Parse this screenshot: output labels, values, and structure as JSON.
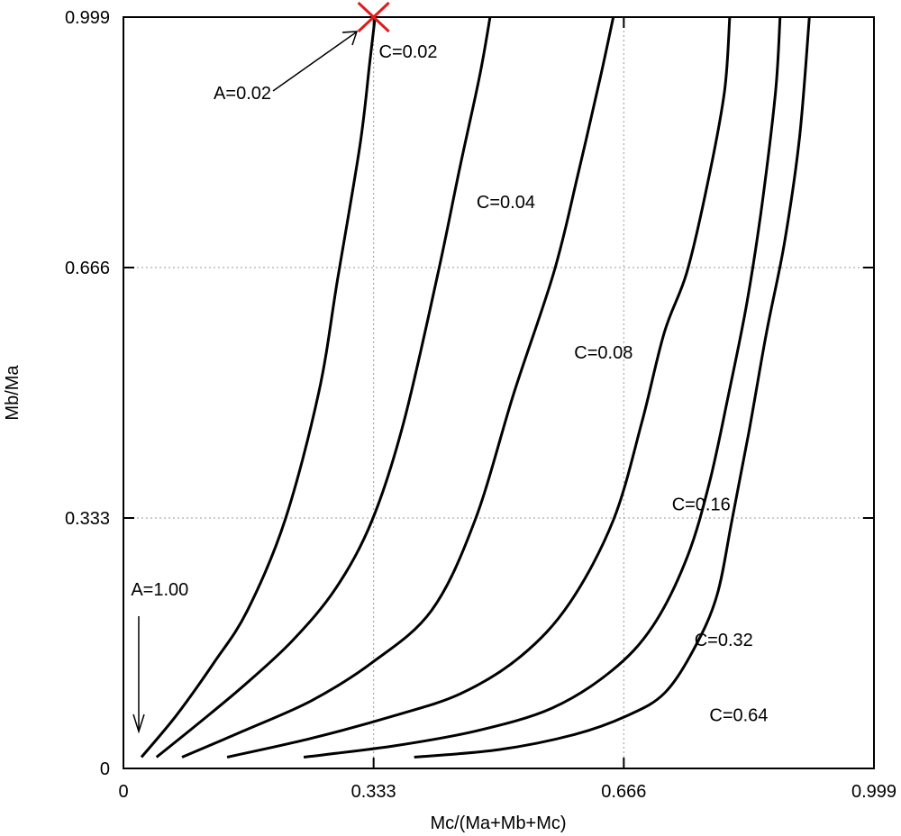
{
  "chart_data": {
    "type": "line",
    "title": "",
    "xlabel": "Mc/(Ma+Mb+Mc)",
    "ylabel": "Mb/Ma",
    "xlim": [
      0,
      0.999
    ],
    "ylim": [
      0,
      0.999
    ],
    "xticks": [
      "0",
      "0.333",
      "0.666",
      "0.999"
    ],
    "yticks": [
      "0",
      "0.333",
      "0.666",
      "0.999"
    ],
    "grid": true,
    "legend": "none",
    "series": [
      {
        "name": "C=0.02",
        "points": [
          [
            0.024,
            0.015
          ],
          [
            0.07,
            0.07
          ],
          [
            0.12,
            0.14
          ],
          [
            0.165,
            0.21
          ],
          [
            0.215,
            0.33
          ],
          [
            0.26,
            0.5
          ],
          [
            0.285,
            0.65
          ],
          [
            0.315,
            0.83
          ],
          [
            0.328,
            0.94
          ],
          [
            0.335,
            0.999
          ]
        ]
      },
      {
        "name": "C=0.04",
        "points": [
          [
            0.044,
            0.015
          ],
          [
            0.1,
            0.06
          ],
          [
            0.16,
            0.11
          ],
          [
            0.225,
            0.17
          ],
          [
            0.283,
            0.24
          ],
          [
            0.331,
            0.33
          ],
          [
            0.373,
            0.46
          ],
          [
            0.419,
            0.66
          ],
          [
            0.448,
            0.8
          ],
          [
            0.474,
            0.92
          ],
          [
            0.488,
            0.999
          ]
        ]
      },
      {
        "name": "C=0.08",
        "points": [
          [
            0.078,
            0.015
          ],
          [
            0.16,
            0.05
          ],
          [
            0.25,
            0.09
          ],
          [
            0.33,
            0.14
          ],
          [
            0.41,
            0.21
          ],
          [
            0.468,
            0.33
          ],
          [
            0.52,
            0.5
          ],
          [
            0.573,
            0.66
          ],
          [
            0.605,
            0.79
          ],
          [
            0.635,
            0.92
          ],
          [
            0.652,
            0.999
          ]
        ]
      },
      {
        "name": "C=0.16",
        "points": [
          [
            0.138,
            0.015
          ],
          [
            0.25,
            0.04
          ],
          [
            0.36,
            0.07
          ],
          [
            0.45,
            0.1
          ],
          [
            0.53,
            0.15
          ],
          [
            0.594,
            0.22
          ],
          [
            0.652,
            0.33
          ],
          [
            0.69,
            0.46
          ],
          [
            0.72,
            0.58
          ],
          [
            0.75,
            0.66
          ],
          [
            0.778,
            0.78
          ],
          [
            0.8,
            0.9
          ],
          [
            0.807,
            0.999
          ]
        ]
      },
      {
        "name": "C=0.32",
        "points": [
          [
            0.24,
            0.015
          ],
          [
            0.36,
            0.03
          ],
          [
            0.47,
            0.05
          ],
          [
            0.57,
            0.08
          ],
          [
            0.65,
            0.13
          ],
          [
            0.705,
            0.19
          ],
          [
            0.75,
            0.28
          ],
          [
            0.78,
            0.38
          ],
          [
            0.806,
            0.5
          ],
          [
            0.83,
            0.62
          ],
          [
            0.85,
            0.75
          ],
          [
            0.868,
            0.9
          ],
          [
            0.874,
            0.999
          ]
        ]
      },
      {
        "name": "C=0.64",
        "points": [
          [
            0.387,
            0.015
          ],
          [
            0.5,
            0.025
          ],
          [
            0.6,
            0.045
          ],
          [
            0.67,
            0.07
          ],
          [
            0.72,
            0.1
          ],
          [
            0.76,
            0.16
          ],
          [
            0.79,
            0.23
          ],
          [
            0.81,
            0.33
          ],
          [
            0.833,
            0.45
          ],
          [
            0.856,
            0.58
          ],
          [
            0.88,
            0.7
          ],
          [
            0.9,
            0.84
          ],
          [
            0.913,
            0.999
          ]
        ]
      }
    ],
    "annotations": [
      {
        "text": "C=0.02",
        "x": 0.34,
        "y": 0.945
      },
      {
        "text": "C=0.04",
        "x": 0.47,
        "y": 0.745
      },
      {
        "text": "C=0.08",
        "x": 0.6,
        "y": 0.545
      },
      {
        "text": "C=0.16",
        "x": 0.73,
        "y": 0.343
      },
      {
        "text": "C=0.32",
        "x": 0.76,
        "y": 0.163
      },
      {
        "text": "C=0.64",
        "x": 0.78,
        "y": 0.063
      },
      {
        "text": "A=0.02",
        "x": 0.12,
        "y": 0.89
      },
      {
        "text": "A=1.00",
        "x": 0.01,
        "y": 0.23
      }
    ],
    "marker": {
      "shape": "x",
      "color": "#e01b1b",
      "x": 0.333,
      "y": 0.999
    }
  }
}
